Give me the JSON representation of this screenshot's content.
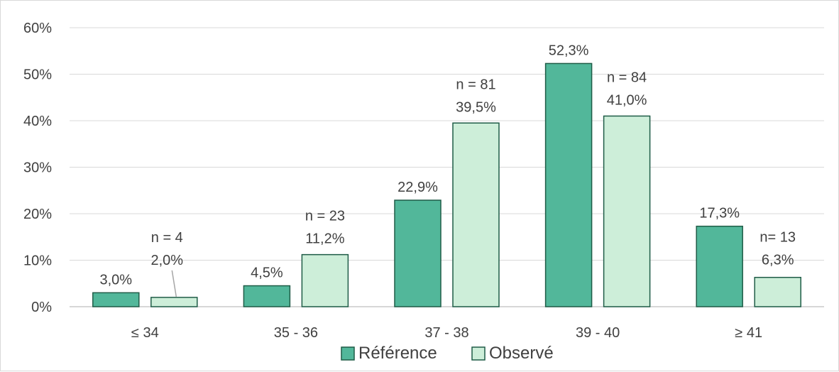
{
  "chart_data": {
    "type": "bar",
    "categories": [
      "≤ 34",
      "35 - 36",
      "37 - 38",
      "39 - 40",
      "≥ 41"
    ],
    "series": [
      {
        "name": "Référence",
        "values": [
          3.0,
          4.5,
          22.9,
          52.3,
          17.3
        ],
        "value_labels": [
          "3,0%",
          "4,5%",
          "22,9%",
          "52,3%",
          "17,3%"
        ],
        "color": "#52b79a"
      },
      {
        "name": "Observé",
        "values": [
          2.0,
          11.2,
          39.5,
          41.0,
          6.3
        ],
        "value_labels": [
          "2,0%",
          "11,2%",
          "39,5%",
          "41,0%",
          "6,3%"
        ],
        "count_labels": [
          "n = 4",
          "n = 23",
          "n = 81",
          "n = 84",
          "n= 13"
        ],
        "color": "#cdeed9"
      }
    ],
    "ylim": [
      0,
      60
    ],
    "yticks": [
      0,
      10,
      20,
      30,
      40,
      50,
      60
    ],
    "ytick_labels": [
      "0%",
      "10%",
      "20%",
      "30%",
      "40%",
      "50%",
      "60%"
    ],
    "grid": true,
    "legend": "bottom-center",
    "bar_edge_color": "#1f5c47"
  }
}
